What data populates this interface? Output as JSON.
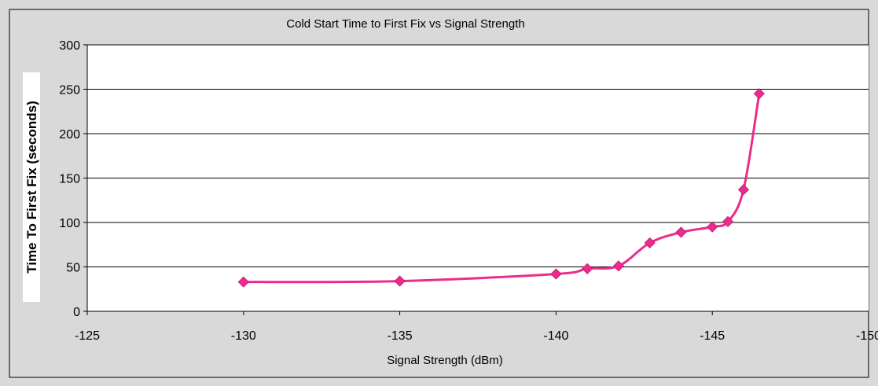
{
  "colors": {
    "background": "#d9d9d9",
    "plot_area": "#ffffff",
    "series": "#ec2c8c",
    "gridline": "#000000"
  },
  "chart_data": {
    "type": "line",
    "title": "Cold Start Time to First Fix vs Signal Strength",
    "xlabel": "Signal Strength (dBm)",
    "ylabel": "Time To First Fix (seconds)",
    "x_reversed": true,
    "xlim": [
      -125,
      -150
    ],
    "ylim": [
      0,
      300
    ],
    "xticks": [
      -125,
      -130,
      -135,
      -140,
      -145,
      -150
    ],
    "yticks": [
      0,
      50,
      100,
      150,
      200,
      250,
      300
    ],
    "x_tick_labels": [
      "-125",
      "-130",
      "-135",
      "-140",
      "-145",
      "-150"
    ],
    "y_tick_labels": [
      "0",
      "50",
      "100",
      "150",
      "200",
      "250",
      "300"
    ],
    "grid": "horizontal",
    "legend": "none",
    "marker": "diamond",
    "smooth": true,
    "series": [
      {
        "x": [
          -130,
          -135,
          -140,
          -141,
          -142,
          -143,
          -144,
          -145,
          -145.5,
          -146,
          -146.5
        ],
        "y": [
          33,
          34,
          42,
          48,
          51,
          77,
          89,
          95,
          101,
          137,
          245
        ]
      }
    ]
  }
}
